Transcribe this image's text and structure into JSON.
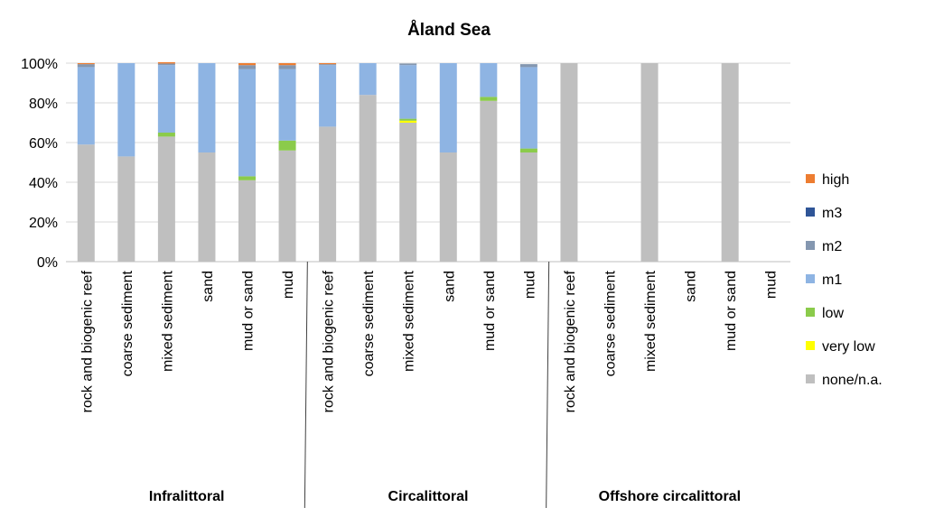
{
  "chart_data": {
    "type": "bar",
    "stacked": true,
    "normalized_percent": true,
    "title": "Åland Sea",
    "ylim": [
      0,
      100
    ],
    "yticks": [
      "0%",
      "20%",
      "40%",
      "60%",
      "80%",
      "100%"
    ],
    "grid": true,
    "legend_position": "right",
    "categories": [
      "rock and biogenic reef",
      "coarse sediment",
      "mixed sediment",
      "sand",
      "mud or sand",
      "mud",
      "rock and biogenic reef",
      "coarse sediment",
      "mixed sediment",
      "sand",
      "mud or sand",
      "mud",
      "rock and biogenic reef",
      "coarse sediment",
      "mixed sediment",
      "sand",
      "mud or sand",
      "mud"
    ],
    "groups": [
      {
        "label": "Infralittoral",
        "count": 6
      },
      {
        "label": "Circalittoral",
        "count": 6
      },
      {
        "label": "Offshore circalittoral",
        "count": 6
      }
    ],
    "series": [
      {
        "name": "none/n.a.",
        "color": "#BFBFBF",
        "values": [
          59,
          53,
          63,
          55,
          41,
          56,
          68,
          84,
          70,
          55,
          81,
          55,
          100,
          0,
          100,
          0,
          100,
          0
        ]
      },
      {
        "name": "very low",
        "color": "#FFFF00",
        "values": [
          0,
          0,
          0,
          0,
          0,
          0,
          0,
          0,
          1,
          0,
          0,
          0,
          0,
          0,
          0,
          0,
          0,
          0
        ]
      },
      {
        "name": "low",
        "color": "#8BCB4B",
        "values": [
          0,
          0,
          2,
          0,
          2,
          5,
          0,
          0,
          1,
          0,
          2,
          2,
          0,
          0,
          0,
          0,
          0,
          0
        ]
      },
      {
        "name": "m1",
        "color": "#8EB4E3",
        "values": [
          39,
          47,
          34,
          45,
          54,
          36,
          31,
          16,
          27,
          45,
          17,
          41,
          0,
          0,
          0,
          0,
          0,
          0
        ]
      },
      {
        "name": "m2",
        "color": "#8497B0",
        "values": [
          1.5,
          0,
          0.8,
          0,
          2,
          2,
          0.5,
          0,
          0.8,
          0,
          0,
          1.5,
          0,
          0,
          0,
          0,
          0,
          0
        ]
      },
      {
        "name": "m3",
        "color": "#2F5597",
        "values": [
          0,
          0,
          0,
          0,
          0,
          0,
          0,
          0,
          0,
          0,
          0,
          0,
          0,
          0,
          0,
          0,
          0,
          0
        ]
      },
      {
        "name": "high",
        "color": "#ED7D31",
        "values": [
          0.5,
          0,
          0.7,
          0,
          1,
          1,
          0.5,
          0,
          0,
          0,
          0,
          0,
          0,
          0,
          0,
          0,
          0,
          0
        ]
      }
    ],
    "legend_order": [
      "high",
      "m3",
      "m2",
      "m1",
      "low",
      "very low",
      "none/n.a."
    ]
  }
}
